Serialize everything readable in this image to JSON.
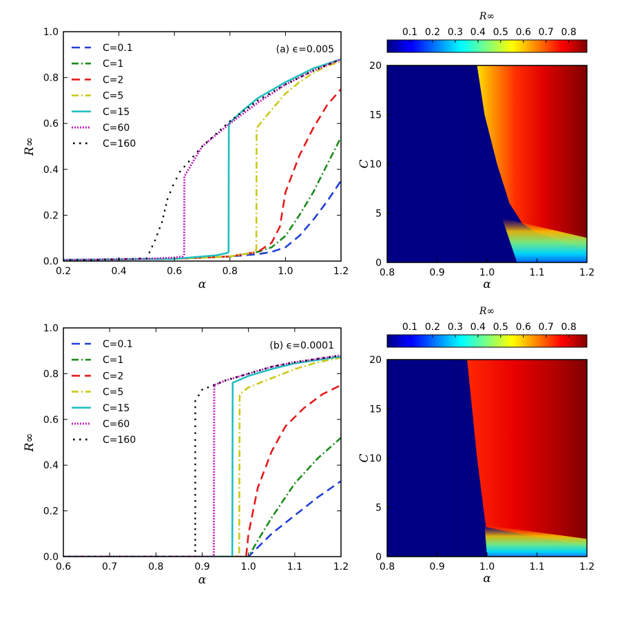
{
  "figure_type": "epidemic threshold figure",
  "colors": {
    "C=0.1": "#1f3fd6",
    "C=1": "#1a8a1a",
    "C=2": "#e51a1a",
    "C=5": "#c9c91a",
    "C=15": "#22bfbf",
    "C=60": "#bf22bf",
    "C=160": "#000000"
  },
  "chart_data": [
    {
      "id": "a_line",
      "type": "line",
      "annotation": "(a) ϵ=0.005",
      "xlabel": "α",
      "ylabel": "R∞",
      "xlim": [
        0.2,
        1.2
      ],
      "ylim": [
        0.0,
        1.0
      ],
      "xticks": [
        0.2,
        0.4,
        0.6,
        0.8,
        1.0,
        1.2
      ],
      "xtick_labels": [
        "0.2",
        "0.4",
        "0.6",
        "0.8",
        "1.0",
        "1.2"
      ],
      "yticks": [
        0.0,
        0.2,
        0.4,
        0.6,
        0.8,
        1.0
      ],
      "ytick_labels": [
        "0.0",
        "0.2",
        "0.4",
        "0.6",
        "0.8",
        "1.0"
      ],
      "legend_position": "top-left",
      "series": [
        {
          "name": "C=0.1",
          "style": "dashed",
          "x": [
            0.2,
            0.6,
            0.8,
            0.9,
            0.95,
            1.0,
            1.05,
            1.1,
            1.15,
            1.2
          ],
          "y": [
            0.005,
            0.01,
            0.02,
            0.03,
            0.04,
            0.06,
            0.11,
            0.18,
            0.26,
            0.35
          ]
        },
        {
          "name": "C=1",
          "style": "dashdot",
          "x": [
            0.2,
            0.6,
            0.8,
            0.9,
            0.95,
            1.0,
            1.05,
            1.1,
            1.15,
            1.2
          ],
          "y": [
            0.005,
            0.01,
            0.02,
            0.04,
            0.06,
            0.11,
            0.2,
            0.3,
            0.42,
            0.54
          ]
        },
        {
          "name": "C=2",
          "style": "dashed",
          "x": [
            0.2,
            0.6,
            0.8,
            0.9,
            0.95,
            0.98,
            1.0,
            1.05,
            1.1,
            1.15,
            1.2
          ],
          "y": [
            0.005,
            0.01,
            0.02,
            0.04,
            0.08,
            0.15,
            0.3,
            0.46,
            0.58,
            0.68,
            0.75
          ]
        },
        {
          "name": "C=5",
          "style": "dashdot",
          "x": [
            0.2,
            0.6,
            0.8,
            0.88,
            0.895,
            0.896,
            0.95,
            1.0,
            1.05,
            1.1,
            1.15,
            1.2
          ],
          "y": [
            0.005,
            0.01,
            0.02,
            0.035,
            0.05,
            0.58,
            0.66,
            0.73,
            0.78,
            0.82,
            0.85,
            0.87
          ]
        },
        {
          "name": "C=15",
          "style": "solid",
          "x": [
            0.2,
            0.6,
            0.75,
            0.79,
            0.795,
            0.796,
            0.85,
            0.9,
            1.0,
            1.1,
            1.2
          ],
          "y": [
            0.005,
            0.01,
            0.025,
            0.035,
            0.04,
            0.6,
            0.66,
            0.71,
            0.78,
            0.84,
            0.88
          ]
        },
        {
          "name": "C=60",
          "style": "dotted",
          "x": [
            0.2,
            0.5,
            0.6,
            0.63,
            0.635,
            0.636,
            0.7,
            0.8,
            0.9,
            1.0,
            1.1,
            1.2
          ],
          "y": [
            0.005,
            0.01,
            0.015,
            0.02,
            0.03,
            0.37,
            0.5,
            0.6,
            0.69,
            0.77,
            0.83,
            0.88
          ]
        },
        {
          "name": "C=160",
          "style": "sparse-dots",
          "x": [
            0.2,
            0.3,
            0.4,
            0.5,
            0.53,
            0.555,
            0.575,
            0.595,
            0.62,
            0.7,
            0.8,
            0.9,
            1.0,
            1.1,
            1.2
          ],
          "y": [
            0.005,
            0.005,
            0.008,
            0.012,
            0.09,
            0.17,
            0.27,
            0.33,
            0.39,
            0.5,
            0.61,
            0.7,
            0.77,
            0.83,
            0.88
          ]
        }
      ]
    },
    {
      "id": "a_heatmap",
      "type": "heatmap",
      "xlabel": "α",
      "ylabel": "C",
      "xlim": [
        0.8,
        1.2
      ],
      "ylim": [
        0,
        20
      ],
      "xticks": [
        0.8,
        0.9,
        1.0,
        1.1,
        1.2
      ],
      "xtick_labels": [
        "0.8",
        "0.9",
        "1.0",
        "1.1",
        "1.2"
      ],
      "yticks": [
        0,
        5,
        10,
        15,
        20
      ],
      "ytick_labels": [
        "0",
        "5",
        "10",
        "15",
        "20"
      ],
      "epsilon": 0.005,
      "boundary": {
        "C": [
          20,
          15,
          10,
          6,
          4,
          3
        ],
        "alpha": [
          0.98,
          0.995,
          1.02,
          1.045,
          1.07,
          1.1
        ]
      },
      "colorbar": {
        "label": "R∞",
        "range": [
          0.0,
          0.88
        ],
        "ticks": [
          0.1,
          0.2,
          0.3,
          0.4,
          0.5,
          0.6,
          0.7,
          0.8
        ],
        "tick_labels": [
          "0.1",
          "0.2",
          "0.3",
          "0.4",
          "0.5",
          "0.6",
          "0.7",
          "0.8"
        ]
      }
    },
    {
      "id": "b_line",
      "type": "line",
      "annotation": "(b) ϵ=0.0001",
      "xlabel": "α",
      "ylabel": "R∞",
      "xlim": [
        0.6,
        1.2
      ],
      "ylim": [
        0.0,
        1.0
      ],
      "xticks": [
        0.6,
        0.7,
        0.8,
        0.9,
        1.0,
        1.1,
        1.2
      ],
      "xtick_labels": [
        "0.6",
        "0.7",
        "0.8",
        "0.9",
        "1.0",
        "1.1",
        "1.2"
      ],
      "yticks": [
        0.0,
        0.2,
        0.4,
        0.6,
        0.8,
        1.0
      ],
      "ytick_labels": [
        "0.0",
        "0.2",
        "0.4",
        "0.6",
        "0.8",
        "1.0"
      ],
      "legend_position": "top-left",
      "series": [
        {
          "name": "C=0.1",
          "style": "dashed",
          "x": [
            0.6,
            1.0,
            1.02,
            1.05,
            1.1,
            1.15,
            1.2
          ],
          "y": [
            0.0,
            0.0,
            0.04,
            0.1,
            0.18,
            0.26,
            0.33
          ]
        },
        {
          "name": "C=1",
          "style": "dashdot",
          "x": [
            0.6,
            1.0,
            1.02,
            1.05,
            1.1,
            1.15,
            1.2
          ],
          "y": [
            0.0,
            0.0,
            0.07,
            0.17,
            0.32,
            0.43,
            0.52
          ]
        },
        {
          "name": "C=2",
          "style": "dashed",
          "x": [
            0.6,
            0.995,
            1.0,
            1.02,
            1.05,
            1.08,
            1.12,
            1.16,
            1.2
          ],
          "y": [
            0.0,
            0.0,
            0.1,
            0.3,
            0.46,
            0.57,
            0.65,
            0.71,
            0.75
          ]
        },
        {
          "name": "C=5",
          "style": "dashdot",
          "x": [
            0.6,
            0.98,
            0.981,
            1.0,
            1.05,
            1.1,
            1.15,
            1.2
          ],
          "y": [
            0.0,
            0.0,
            0.71,
            0.74,
            0.78,
            0.82,
            0.85,
            0.87
          ]
        },
        {
          "name": "C=15",
          "style": "solid",
          "x": [
            0.6,
            0.965,
            0.966,
            1.0,
            1.05,
            1.1,
            1.15,
            1.2
          ],
          "y": [
            0.0,
            0.0,
            0.76,
            0.79,
            0.82,
            0.845,
            0.86,
            0.875
          ]
        },
        {
          "name": "C=60",
          "style": "dotted",
          "x": [
            0.6,
            0.925,
            0.926,
            0.95,
            1.0,
            1.05,
            1.1,
            1.15,
            1.2
          ],
          "y": [
            0.0,
            0.0,
            0.75,
            0.77,
            0.8,
            0.83,
            0.85,
            0.865,
            0.88
          ]
        },
        {
          "name": "C=160",
          "style": "sparse-dots",
          "x": [
            0.6,
            0.885,
            0.885,
            0.885,
            0.885,
            0.885,
            0.885,
            0.885,
            0.885,
            0.885,
            0.885,
            0.9,
            0.95,
            1.0,
            1.05,
            1.1,
            1.15,
            1.2
          ],
          "y": [
            0.0,
            0.0,
            0.05,
            0.12,
            0.19,
            0.27,
            0.35,
            0.43,
            0.51,
            0.6,
            0.68,
            0.73,
            0.77,
            0.8,
            0.83,
            0.85,
            0.865,
            0.88
          ]
        }
      ]
    },
    {
      "id": "b_heatmap",
      "type": "heatmap",
      "xlabel": "α",
      "ylabel": "C",
      "xlim": [
        0.8,
        1.2
      ],
      "ylim": [
        0,
        20
      ],
      "xticks": [
        0.8,
        0.9,
        1.0,
        1.1,
        1.2
      ],
      "xtick_labels": [
        "0.8",
        "0.9",
        "1.0",
        "1.1",
        "1.2"
      ],
      "yticks": [
        0,
        5,
        10,
        15,
        20
      ],
      "ytick_labels": [
        "0",
        "5",
        "10",
        "15",
        "20"
      ],
      "epsilon": 0.0001,
      "boundary": {
        "C": [
          20,
          15,
          10,
          6,
          4,
          3
        ],
        "alpha": [
          0.96,
          0.97,
          0.98,
          0.99,
          0.995,
          0.998
        ]
      },
      "colorbar": {
        "label": "R∞",
        "range": [
          0.0,
          0.88
        ],
        "ticks": [
          0.1,
          0.2,
          0.3,
          0.4,
          0.5,
          0.6,
          0.7,
          0.8
        ],
        "tick_labels": [
          "0.1",
          "0.2",
          "0.3",
          "0.4",
          "0.5",
          "0.6",
          "0.7",
          "0.8"
        ]
      }
    }
  ]
}
